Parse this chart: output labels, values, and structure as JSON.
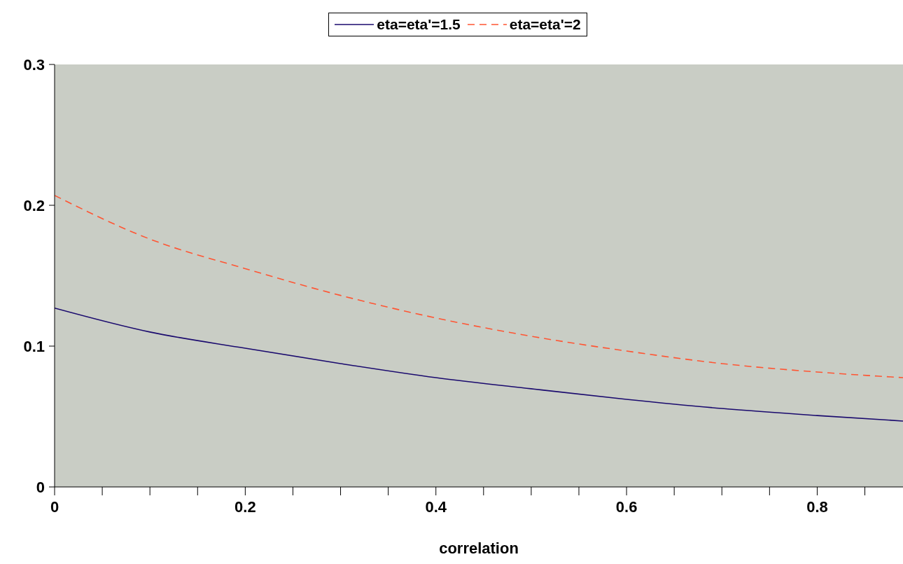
{
  "chart_data": {
    "type": "line",
    "xlabel": "correlation",
    "x": [
      0,
      0.1,
      0.2,
      0.3,
      0.4,
      0.5,
      0.6,
      0.7,
      0.8,
      0.89
    ],
    "series": [
      {
        "name": "eta=eta'=1.5",
        "color": "#1a0a6e",
        "line_style": "solid",
        "values": [
          0.127,
          0.11,
          0.0985,
          0.0876,
          0.0776,
          0.0697,
          0.0622,
          0.0557,
          0.0507,
          0.0468
        ]
      },
      {
        "name": "eta=eta'=2",
        "color": "#ff5533",
        "line_style": "dashed",
        "values": [
          0.207,
          0.176,
          0.155,
          0.136,
          0.12,
          0.107,
          0.0965,
          0.0876,
          0.0816,
          0.0776
        ]
      }
    ],
    "xlim": [
      0,
      0.89
    ],
    "xticks": [
      0,
      {
        "value": 0.05,
        "label": null
      },
      {
        "value": 0.1,
        "label": null
      },
      {
        "value": 0.15,
        "label": null
      },
      0.2,
      {
        "value": 0.25,
        "label": null
      },
      {
        "value": 0.3,
        "label": null
      },
      {
        "value": 0.35,
        "label": null
      },
      0.4,
      {
        "value": 0.45,
        "label": null
      },
      {
        "value": 0.5,
        "label": null
      },
      {
        "value": 0.55,
        "label": null
      },
      0.6,
      {
        "value": 0.65,
        "label": null
      },
      {
        "value": 0.7,
        "label": null
      },
      {
        "value": 0.75,
        "label": null
      },
      0.8,
      {
        "value": 0.85,
        "label": null
      }
    ],
    "ylim": [
      0,
      0.3
    ],
    "yticks": [
      0,
      0.1,
      0.2,
      0.3
    ],
    "grid": false,
    "legend": "top",
    "marker": "none"
  }
}
